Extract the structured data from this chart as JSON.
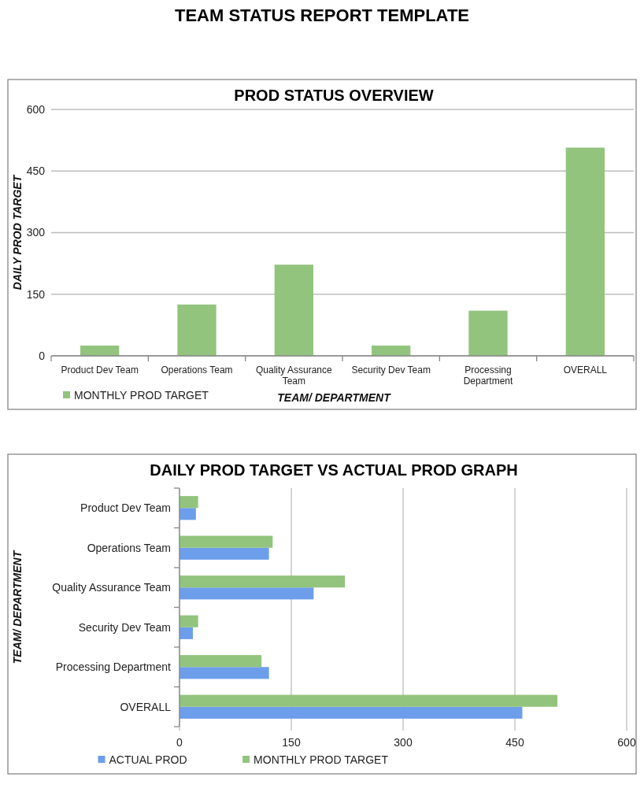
{
  "chart_data": [
    {
      "type": "other",
      "title": "TEAM STATUS REPORT TEMPLATE"
    },
    {
      "type": "bar",
      "title": "PROD STATUS OVERVIEW",
      "xlabel": "TEAM/ DEPARTMENT",
      "ylabel": "DAILY PROD TARGET",
      "categories": [
        "Product Dev Team",
        "Operations Team",
        "Quality Assurance Team",
        "Security Dev Team",
        "Processing Department",
        "OVERALL"
      ],
      "series": [
        {
          "name": "MONTHLY PROD TARGET",
          "color": "#93c47d",
          "values": [
            25,
            125,
            222,
            25,
            110,
            507
          ]
        }
      ],
      "ylim": [
        0,
        600
      ],
      "yticks": [
        0,
        150,
        300,
        450,
        600
      ],
      "grid": "y",
      "legend": "bottom left"
    },
    {
      "type": "bar",
      "orientation": "horizontal",
      "title": "DAILY PROD TARGET VS ACTUAL PROD GRAPH",
      "ylabel": "TEAM/ DEPARTMENT",
      "categories": [
        "Product Dev Team",
        "Operations Team",
        "Quality Assurance Team",
        "Security Dev Team",
        "Processing Department",
        "OVERALL"
      ],
      "series": [
        {
          "name": "ACTUAL PROD",
          "color": "#6d9eeb",
          "values": [
            22,
            120,
            180,
            18,
            120,
            460
          ]
        },
        {
          "name": "MONTHLY PROD TARGET",
          "color": "#93c47d",
          "values": [
            25,
            125,
            222,
            25,
            110,
            507
          ]
        }
      ],
      "xlim": [
        0,
        600
      ],
      "xticks": [
        0,
        150,
        300,
        450,
        600
      ],
      "grid": "x",
      "legend": "bottom"
    }
  ]
}
